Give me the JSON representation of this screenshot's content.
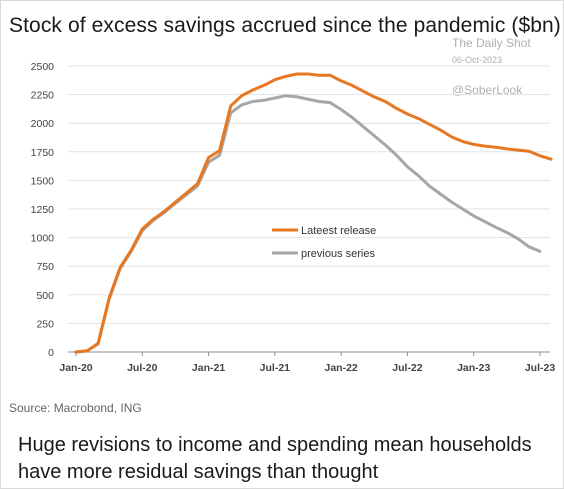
{
  "title": "Stock of excess savings accrued since the pandemic ($bn)",
  "watermark": {
    "line1": "The Daily Shot",
    "line2": "06-Oct-2023",
    "line3": "@SoberLook"
  },
  "source": "Source: Macrobond, ING",
  "caption": "Huge revisions to income and spending mean households have more residual savings than thought",
  "chart_data": {
    "type": "line",
    "title": "Stock of excess savings accrued since the pandemic ($bn)",
    "xlabel": "",
    "ylabel": "",
    "ylim": [
      0,
      2500
    ],
    "yticks": [
      0,
      250,
      500,
      750,
      1000,
      1250,
      1500,
      1750,
      2000,
      2250,
      2500
    ],
    "xlim": [
      "2020-01",
      "2023-08"
    ],
    "xticks": [
      "Jan-20",
      "Jul-20",
      "Jan-21",
      "Jul-21",
      "Jan-22",
      "Jul-22",
      "Jan-23",
      "Jul-23"
    ],
    "grid": "horizontal",
    "legend_position": "center",
    "series": [
      {
        "name": "Lateest release",
        "color": "#e87722",
        "x": [
          "2020-01",
          "2020-02",
          "2020-03",
          "2020-04",
          "2020-05",
          "2020-06",
          "2020-07",
          "2020-08",
          "2020-09",
          "2020-10",
          "2020-11",
          "2020-12",
          "2021-01",
          "2021-02",
          "2021-03",
          "2021-04",
          "2021-05",
          "2021-06",
          "2021-07",
          "2021-08",
          "2021-09",
          "2021-10",
          "2021-11",
          "2021-12",
          "2022-01",
          "2022-02",
          "2022-03",
          "2022-04",
          "2022-05",
          "2022-06",
          "2022-07",
          "2022-08",
          "2022-09",
          "2022-10",
          "2022-11",
          "2022-12",
          "2023-01",
          "2023-02",
          "2023-03",
          "2023-04",
          "2023-05",
          "2023-06",
          "2023-07",
          "2023-08"
        ],
        "values": [
          0,
          10,
          75,
          470,
          740,
          890,
          1075,
          1160,
          1230,
          1310,
          1390,
          1470,
          1700,
          1760,
          2150,
          2240,
          2290,
          2330,
          2380,
          2410,
          2430,
          2430,
          2420,
          2420,
          2370,
          2330,
          2280,
          2230,
          2190,
          2130,
          2080,
          2040,
          1990,
          1940,
          1880,
          1840,
          1815,
          1800,
          1790,
          1775,
          1765,
          1755,
          1715,
          1685
        ]
      },
      {
        "name": "previous series",
        "color": "#a6a6a6",
        "x": [
          "2020-01",
          "2020-02",
          "2020-03",
          "2020-04",
          "2020-05",
          "2020-06",
          "2020-07",
          "2020-08",
          "2020-09",
          "2020-10",
          "2020-11",
          "2020-12",
          "2021-01",
          "2021-02",
          "2021-03",
          "2021-04",
          "2021-05",
          "2021-06",
          "2021-07",
          "2021-08",
          "2021-09",
          "2021-10",
          "2021-11",
          "2021-12",
          "2022-01",
          "2022-02",
          "2022-03",
          "2022-04",
          "2022-05",
          "2022-06",
          "2022-07",
          "2022-08",
          "2022-09",
          "2022-10",
          "2022-11",
          "2022-12",
          "2023-01",
          "2023-02",
          "2023-03",
          "2023-04",
          "2023-05",
          "2023-06",
          "2023-07"
        ],
        "values": [
          0,
          10,
          70,
          460,
          730,
          880,
          1060,
          1150,
          1220,
          1300,
          1375,
          1450,
          1660,
          1720,
          2090,
          2160,
          2190,
          2200,
          2220,
          2240,
          2230,
          2210,
          2190,
          2180,
          2120,
          2050,
          1970,
          1890,
          1810,
          1720,
          1620,
          1540,
          1450,
          1380,
          1310,
          1250,
          1190,
          1140,
          1090,
          1045,
          990,
          920,
          880
        ]
      }
    ]
  }
}
